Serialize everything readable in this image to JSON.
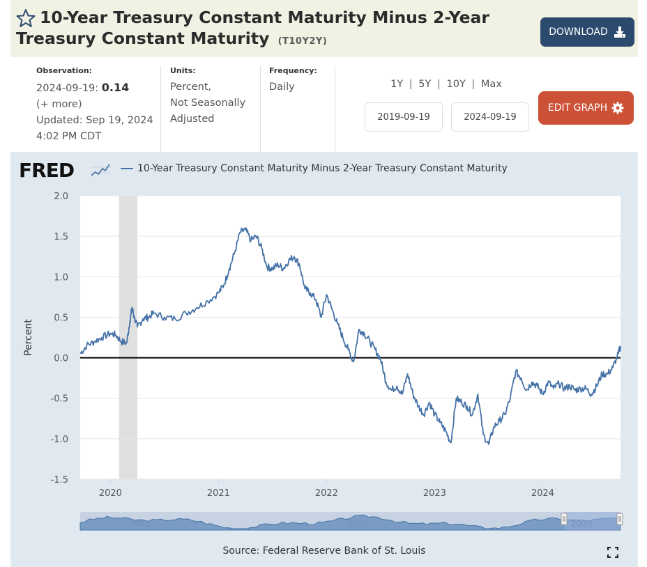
{
  "header": {
    "title": "10-Year Treasury Constant Maturity Minus 2-Year Treasury Constant Maturity",
    "series_id": "(T10Y2Y)",
    "download_label": "DOWNLOAD"
  },
  "meta": {
    "observation_label": "Observation:",
    "observation_date": "2024-09-19:",
    "observation_value": "0.14",
    "more_label": "(+ more)",
    "updated_line1": "Updated: Sep 19, 2024",
    "updated_line2": "4:02 PM CDT",
    "units_label": "Units:",
    "units_line1": "Percent,",
    "units_line2": "Not Seasonally",
    "units_line3": "Adjusted",
    "frequency_label": "Frequency:",
    "frequency_value": "Daily"
  },
  "range_controls": {
    "ranges": [
      "1Y",
      "5Y",
      "10Y",
      "Max"
    ],
    "separator": "|",
    "start_date": "2019-09-19",
    "end_date": "2024-09-19",
    "edit_label": "EDIT GRAPH"
  },
  "graph": {
    "logo": "FRED",
    "source": "Source: Federal Reserve Bank of St. Louis"
  },
  "colors": {
    "series": "#4572a7",
    "download_bg": "#2c4a6e",
    "edit_bg": "#cc5137",
    "recession": "#e0e0e0"
  },
  "chart_data": {
    "type": "line",
    "title": "10-Year Treasury Constant Maturity Minus 2-Year Treasury Constant Maturity",
    "xlabel": "",
    "ylabel": "Percent",
    "ylim": [
      -1.5,
      2.0
    ],
    "yticks": [
      "2.0",
      "1.5",
      "1.0",
      "0.5",
      "0.0",
      "-0.5",
      "-1.0",
      "-1.5"
    ],
    "yticks_values": [
      2.0,
      1.5,
      1.0,
      0.5,
      0.0,
      -0.5,
      -1.0,
      -1.5
    ],
    "xlim": [
      2019.72,
      2024.72
    ],
    "xticks": [
      "2020",
      "2021",
      "2022",
      "2023",
      "2024"
    ],
    "xticks_values": [
      2020,
      2021,
      2022,
      2023,
      2024
    ],
    "recession": [
      2020.08,
      2020.25
    ],
    "navigator_labels": [
      "1980",
      "2000",
      "2020"
    ],
    "series": [
      {
        "name": "10-Year Treasury Constant Maturity Minus 2-Year Treasury Constant Maturity",
        "x": [
          2019.72,
          2019.78,
          2019.85,
          2019.92,
          2020.0,
          2020.05,
          2020.1,
          2020.15,
          2020.18,
          2020.2,
          2020.22,
          2020.25,
          2020.3,
          2020.35,
          2020.4,
          2020.5,
          2020.6,
          2020.7,
          2020.8,
          2020.9,
          2021.0,
          2021.05,
          2021.1,
          2021.15,
          2021.2,
          2021.25,
          2021.3,
          2021.35,
          2021.4,
          2021.45,
          2021.5,
          2021.55,
          2021.6,
          2021.65,
          2021.7,
          2021.75,
          2021.8,
          2021.85,
          2021.9,
          2021.95,
          2022.0,
          2022.05,
          2022.1,
          2022.15,
          2022.2,
          2022.25,
          2022.3,
          2022.35,
          2022.4,
          2022.45,
          2022.5,
          2022.55,
          2022.6,
          2022.65,
          2022.7,
          2022.75,
          2022.8,
          2022.85,
          2022.9,
          2022.95,
          2023.0,
          2023.05,
          2023.1,
          2023.15,
          2023.2,
          2023.25,
          2023.3,
          2023.35,
          2023.4,
          2023.45,
          2023.5,
          2023.55,
          2023.6,
          2023.65,
          2023.7,
          2023.75,
          2023.8,
          2023.85,
          2023.9,
          2023.95,
          2024.0,
          2024.05,
          2024.1,
          2024.15,
          2024.2,
          2024.25,
          2024.3,
          2024.35,
          2024.4,
          2024.45,
          2024.5,
          2024.55,
          2024.6,
          2024.65,
          2024.7,
          2024.72
        ],
        "values": [
          0.05,
          0.15,
          0.2,
          0.25,
          0.3,
          0.28,
          0.2,
          0.18,
          0.45,
          0.62,
          0.5,
          0.38,
          0.48,
          0.5,
          0.55,
          0.5,
          0.48,
          0.55,
          0.62,
          0.7,
          0.8,
          0.9,
          1.1,
          1.3,
          1.55,
          1.58,
          1.45,
          1.5,
          1.35,
          1.12,
          1.1,
          1.15,
          1.1,
          1.2,
          1.25,
          1.15,
          0.85,
          0.8,
          0.72,
          0.5,
          0.78,
          0.6,
          0.42,
          0.25,
          0.1,
          -0.05,
          0.35,
          0.3,
          0.2,
          0.1,
          -0.02,
          -0.3,
          -0.4,
          -0.35,
          -0.45,
          -0.2,
          -0.45,
          -0.6,
          -0.7,
          -0.55,
          -0.7,
          -0.8,
          -0.9,
          -1.05,
          -0.5,
          -0.55,
          -0.6,
          -0.7,
          -0.45,
          -0.95,
          -1.07,
          -0.85,
          -0.78,
          -0.7,
          -0.5,
          -0.17,
          -0.25,
          -0.4,
          -0.3,
          -0.35,
          -0.45,
          -0.3,
          -0.38,
          -0.32,
          -0.38,
          -0.35,
          -0.4,
          -0.38,
          -0.38,
          -0.45,
          -0.35,
          -0.2,
          -0.2,
          -0.12,
          0.05,
          0.14
        ]
      }
    ]
  }
}
